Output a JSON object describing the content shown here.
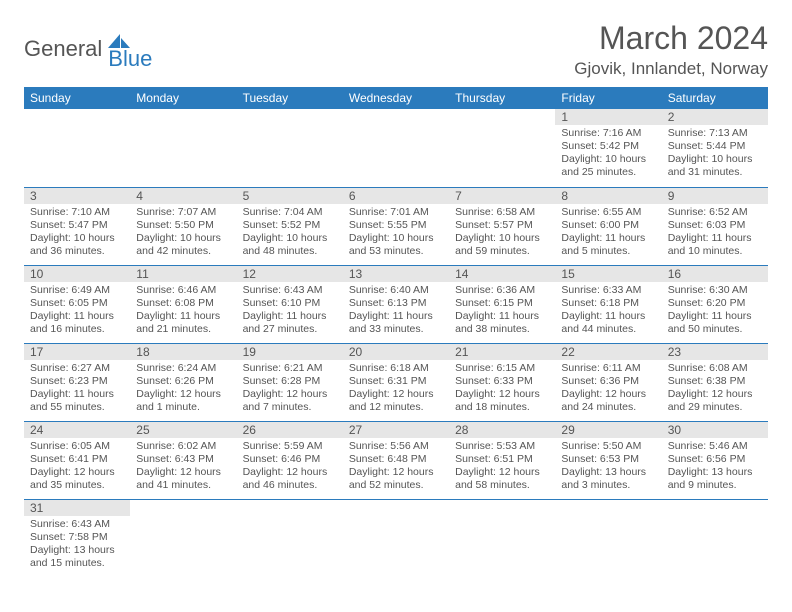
{
  "logo": {
    "text1": "General",
    "text2": "Blue"
  },
  "title": "March 2024",
  "location": "Gjovik, Innlandet, Norway",
  "colors": {
    "header_bg": "#2b7bbd",
    "header_text": "#ffffff",
    "daynum_bg": "#e6e6e6",
    "border": "#2b7bbd",
    "text": "#555555",
    "background": "#ffffff"
  },
  "weekdays": [
    "Sunday",
    "Monday",
    "Tuesday",
    "Wednesday",
    "Thursday",
    "Friday",
    "Saturday"
  ],
  "weeks": [
    [
      null,
      null,
      null,
      null,
      null,
      {
        "day": "1",
        "sunrise": "Sunrise: 7:16 AM",
        "sunset": "Sunset: 5:42 PM",
        "daylight1": "Daylight: 10 hours",
        "daylight2": "and 25 minutes."
      },
      {
        "day": "2",
        "sunrise": "Sunrise: 7:13 AM",
        "sunset": "Sunset: 5:44 PM",
        "daylight1": "Daylight: 10 hours",
        "daylight2": "and 31 minutes."
      }
    ],
    [
      {
        "day": "3",
        "sunrise": "Sunrise: 7:10 AM",
        "sunset": "Sunset: 5:47 PM",
        "daylight1": "Daylight: 10 hours",
        "daylight2": "and 36 minutes."
      },
      {
        "day": "4",
        "sunrise": "Sunrise: 7:07 AM",
        "sunset": "Sunset: 5:50 PM",
        "daylight1": "Daylight: 10 hours",
        "daylight2": "and 42 minutes."
      },
      {
        "day": "5",
        "sunrise": "Sunrise: 7:04 AM",
        "sunset": "Sunset: 5:52 PM",
        "daylight1": "Daylight: 10 hours",
        "daylight2": "and 48 minutes."
      },
      {
        "day": "6",
        "sunrise": "Sunrise: 7:01 AM",
        "sunset": "Sunset: 5:55 PM",
        "daylight1": "Daylight: 10 hours",
        "daylight2": "and 53 minutes."
      },
      {
        "day": "7",
        "sunrise": "Sunrise: 6:58 AM",
        "sunset": "Sunset: 5:57 PM",
        "daylight1": "Daylight: 10 hours",
        "daylight2": "and 59 minutes."
      },
      {
        "day": "8",
        "sunrise": "Sunrise: 6:55 AM",
        "sunset": "Sunset: 6:00 PM",
        "daylight1": "Daylight: 11 hours",
        "daylight2": "and 5 minutes."
      },
      {
        "day": "9",
        "sunrise": "Sunrise: 6:52 AM",
        "sunset": "Sunset: 6:03 PM",
        "daylight1": "Daylight: 11 hours",
        "daylight2": "and 10 minutes."
      }
    ],
    [
      {
        "day": "10",
        "sunrise": "Sunrise: 6:49 AM",
        "sunset": "Sunset: 6:05 PM",
        "daylight1": "Daylight: 11 hours",
        "daylight2": "and 16 minutes."
      },
      {
        "day": "11",
        "sunrise": "Sunrise: 6:46 AM",
        "sunset": "Sunset: 6:08 PM",
        "daylight1": "Daylight: 11 hours",
        "daylight2": "and 21 minutes."
      },
      {
        "day": "12",
        "sunrise": "Sunrise: 6:43 AM",
        "sunset": "Sunset: 6:10 PM",
        "daylight1": "Daylight: 11 hours",
        "daylight2": "and 27 minutes."
      },
      {
        "day": "13",
        "sunrise": "Sunrise: 6:40 AM",
        "sunset": "Sunset: 6:13 PM",
        "daylight1": "Daylight: 11 hours",
        "daylight2": "and 33 minutes."
      },
      {
        "day": "14",
        "sunrise": "Sunrise: 6:36 AM",
        "sunset": "Sunset: 6:15 PM",
        "daylight1": "Daylight: 11 hours",
        "daylight2": "and 38 minutes."
      },
      {
        "day": "15",
        "sunrise": "Sunrise: 6:33 AM",
        "sunset": "Sunset: 6:18 PM",
        "daylight1": "Daylight: 11 hours",
        "daylight2": "and 44 minutes."
      },
      {
        "day": "16",
        "sunrise": "Sunrise: 6:30 AM",
        "sunset": "Sunset: 6:20 PM",
        "daylight1": "Daylight: 11 hours",
        "daylight2": "and 50 minutes."
      }
    ],
    [
      {
        "day": "17",
        "sunrise": "Sunrise: 6:27 AM",
        "sunset": "Sunset: 6:23 PM",
        "daylight1": "Daylight: 11 hours",
        "daylight2": "and 55 minutes."
      },
      {
        "day": "18",
        "sunrise": "Sunrise: 6:24 AM",
        "sunset": "Sunset: 6:26 PM",
        "daylight1": "Daylight: 12 hours",
        "daylight2": "and 1 minute."
      },
      {
        "day": "19",
        "sunrise": "Sunrise: 6:21 AM",
        "sunset": "Sunset: 6:28 PM",
        "daylight1": "Daylight: 12 hours",
        "daylight2": "and 7 minutes."
      },
      {
        "day": "20",
        "sunrise": "Sunrise: 6:18 AM",
        "sunset": "Sunset: 6:31 PM",
        "daylight1": "Daylight: 12 hours",
        "daylight2": "and 12 minutes."
      },
      {
        "day": "21",
        "sunrise": "Sunrise: 6:15 AM",
        "sunset": "Sunset: 6:33 PM",
        "daylight1": "Daylight: 12 hours",
        "daylight2": "and 18 minutes."
      },
      {
        "day": "22",
        "sunrise": "Sunrise: 6:11 AM",
        "sunset": "Sunset: 6:36 PM",
        "daylight1": "Daylight: 12 hours",
        "daylight2": "and 24 minutes."
      },
      {
        "day": "23",
        "sunrise": "Sunrise: 6:08 AM",
        "sunset": "Sunset: 6:38 PM",
        "daylight1": "Daylight: 12 hours",
        "daylight2": "and 29 minutes."
      }
    ],
    [
      {
        "day": "24",
        "sunrise": "Sunrise: 6:05 AM",
        "sunset": "Sunset: 6:41 PM",
        "daylight1": "Daylight: 12 hours",
        "daylight2": "and 35 minutes."
      },
      {
        "day": "25",
        "sunrise": "Sunrise: 6:02 AM",
        "sunset": "Sunset: 6:43 PM",
        "daylight1": "Daylight: 12 hours",
        "daylight2": "and 41 minutes."
      },
      {
        "day": "26",
        "sunrise": "Sunrise: 5:59 AM",
        "sunset": "Sunset: 6:46 PM",
        "daylight1": "Daylight: 12 hours",
        "daylight2": "and 46 minutes."
      },
      {
        "day": "27",
        "sunrise": "Sunrise: 5:56 AM",
        "sunset": "Sunset: 6:48 PM",
        "daylight1": "Daylight: 12 hours",
        "daylight2": "and 52 minutes."
      },
      {
        "day": "28",
        "sunrise": "Sunrise: 5:53 AM",
        "sunset": "Sunset: 6:51 PM",
        "daylight1": "Daylight: 12 hours",
        "daylight2": "and 58 minutes."
      },
      {
        "day": "29",
        "sunrise": "Sunrise: 5:50 AM",
        "sunset": "Sunset: 6:53 PM",
        "daylight1": "Daylight: 13 hours",
        "daylight2": "and 3 minutes."
      },
      {
        "day": "30",
        "sunrise": "Sunrise: 5:46 AM",
        "sunset": "Sunset: 6:56 PM",
        "daylight1": "Daylight: 13 hours",
        "daylight2": "and 9 minutes."
      }
    ],
    [
      {
        "day": "31",
        "sunrise": "Sunrise: 6:43 AM",
        "sunset": "Sunset: 7:58 PM",
        "daylight1": "Daylight: 13 hours",
        "daylight2": "and 15 minutes."
      },
      null,
      null,
      null,
      null,
      null,
      null
    ]
  ]
}
